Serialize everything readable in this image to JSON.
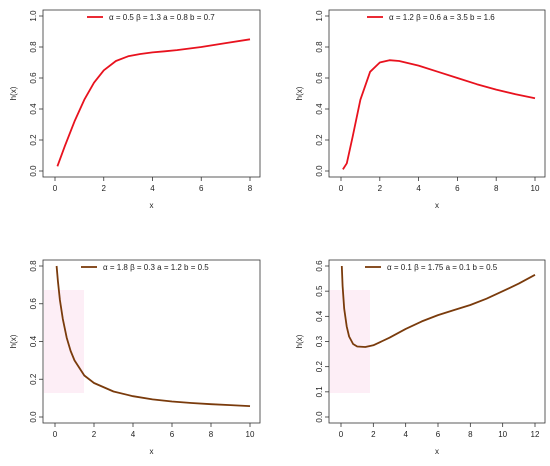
{
  "chart_data": [
    {
      "type": "line",
      "xlabel": "x",
      "ylabel": "h(x)",
      "xlim": [
        0,
        8
      ],
      "ylim": [
        0,
        1.0
      ],
      "xticks": [
        0,
        2,
        4,
        6,
        8
      ],
      "yticks": [
        0.0,
        0.2,
        0.4,
        0.6,
        0.8,
        1.0
      ],
      "grid": false,
      "legend_position": "top-right",
      "series": [
        {
          "name": "α = 0.5   β = 1.3   a = 0.8   b = 0.7",
          "color": "#e8121e",
          "x": [
            0.1,
            0.4,
            0.8,
            1.2,
            1.6,
            2.0,
            2.5,
            3.0,
            3.5,
            4.0,
            4.5,
            5.0,
            6.0,
            7.0,
            8.0
          ],
          "y": [
            0.03,
            0.16,
            0.32,
            0.46,
            0.57,
            0.65,
            0.71,
            0.74,
            0.755,
            0.765,
            0.772,
            0.78,
            0.8,
            0.825,
            0.85
          ]
        }
      ]
    },
    {
      "type": "line",
      "xlabel": "x",
      "ylabel": "h(x)",
      "xlim": [
        0,
        10
      ],
      "ylim": [
        0,
        1.0
      ],
      "xticks": [
        0,
        2,
        4,
        6,
        8,
        10
      ],
      "yticks": [
        0.0,
        0.2,
        0.4,
        0.6,
        0.8,
        1.0
      ],
      "grid": false,
      "legend_position": "top-right",
      "series": [
        {
          "name": "α = 1.2   β = 0.6   a = 3.5   b = 1.6",
          "color": "#e8121e",
          "x": [
            0.1,
            0.3,
            0.6,
            1.0,
            1.5,
            2.0,
            2.5,
            3.0,
            4.0,
            5.0,
            6.0,
            7.0,
            8.0,
            9.0,
            10.0
          ],
          "y": [
            0.01,
            0.05,
            0.22,
            0.46,
            0.64,
            0.7,
            0.715,
            0.71,
            0.68,
            0.64,
            0.6,
            0.56,
            0.525,
            0.495,
            0.47
          ]
        }
      ]
    },
    {
      "type": "line",
      "xlabel": "x",
      "ylabel": "h(x)",
      "xlim": [
        0,
        10
      ],
      "ylim": [
        0,
        0.8
      ],
      "xticks": [
        0,
        2,
        4,
        6,
        8,
        10
      ],
      "yticks": [
        0.0,
        0.2,
        0.4,
        0.6,
        0.8
      ],
      "grid": false,
      "legend_position": "top-right",
      "series": [
        {
          "name": "α = 1.8   β = 0.3   a = 1.2   b = 0.5",
          "color": "#7a3b0c",
          "x": [
            0.08,
            0.15,
            0.25,
            0.4,
            0.6,
            0.8,
            1.0,
            1.5,
            2.0,
            3.0,
            4.0,
            5.0,
            6.0,
            7.0,
            8.0,
            9.0,
            10.0
          ],
          "y": [
            0.8,
            0.72,
            0.62,
            0.52,
            0.42,
            0.35,
            0.3,
            0.22,
            0.18,
            0.135,
            0.11,
            0.093,
            0.082,
            0.074,
            0.068,
            0.063,
            0.058
          ]
        }
      ]
    },
    {
      "type": "line",
      "xlabel": "x",
      "ylabel": "h(x)",
      "xlim": [
        0,
        12
      ],
      "ylim": [
        0,
        0.6
      ],
      "xticks": [
        0,
        2,
        4,
        6,
        8,
        10,
        12
      ],
      "yticks": [
        0.0,
        0.1,
        0.2,
        0.3,
        0.4,
        0.5,
        0.6
      ],
      "grid": false,
      "legend_position": "top-right",
      "series": [
        {
          "name": "α = 0.1   β = 1.75   a = 0.1   b = 0.5",
          "color": "#7a3b0c",
          "x": [
            0.05,
            0.1,
            0.2,
            0.35,
            0.5,
            0.75,
            1.0,
            1.5,
            2.0,
            3.0,
            4.0,
            5.0,
            6.0,
            7.0,
            8.0,
            9.0,
            10.0,
            11.0,
            12.0
          ],
          "y": [
            0.6,
            0.52,
            0.43,
            0.36,
            0.32,
            0.29,
            0.28,
            0.278,
            0.285,
            0.315,
            0.35,
            0.38,
            0.405,
            0.425,
            0.445,
            0.47,
            0.5,
            0.53,
            0.565
          ]
        }
      ]
    }
  ]
}
